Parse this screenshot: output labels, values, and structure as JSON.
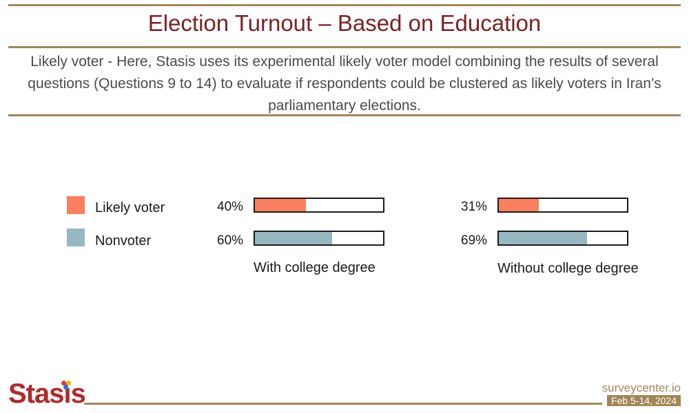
{
  "header": {
    "title": "Election Turnout – Based on Education",
    "subtitle": "Likely voter - Here, Stasis uses its experimental likely voter model combining the results of several questions (Questions 9 to 14) to evaluate if respondents could be clustered as likely voters in Iran’s parliamentary elections."
  },
  "colors": {
    "title": "#7b2222",
    "rule": "#a38556",
    "likely_voter": "#fa7f5e",
    "nonvoter": "#96b8c0"
  },
  "chart_data": {
    "type": "bar",
    "orientation": "horizontal",
    "title": "",
    "categories": [
      "With college degree",
      "Without college degree"
    ],
    "series": [
      {
        "name": "Likely voter",
        "values": [
          40,
          31
        ],
        "labels": [
          "40%",
          "31%"
        ]
      },
      {
        "name": "Nonvoter",
        "values": [
          60,
          69
        ],
        "labels": [
          "60%",
          "69%"
        ]
      }
    ],
    "xlim": [
      0,
      100
    ],
    "legend": "left",
    "grid": false
  },
  "footer": {
    "logo": "Stasis",
    "site": "surveycenter.io",
    "date": "Feb 5-14, 2024"
  }
}
